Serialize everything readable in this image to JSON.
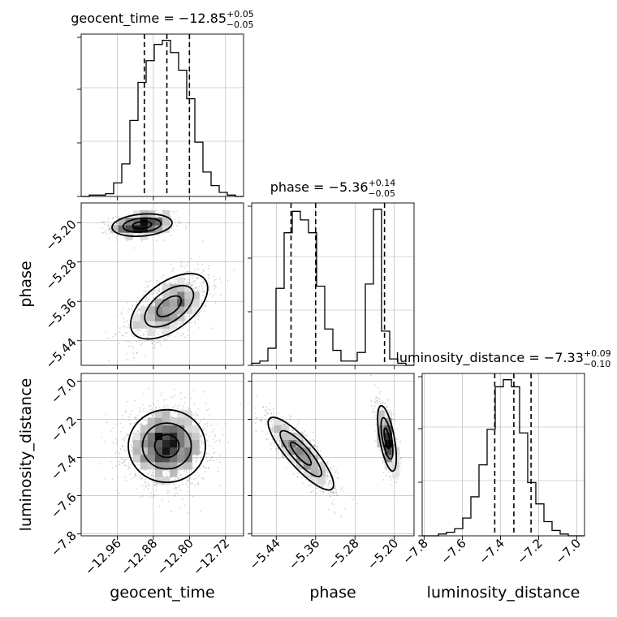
{
  "chart_data": {
    "type": "corner",
    "parameters": [
      {
        "name": "geocent_time",
        "label": "geocent_time",
        "range": [
          -13.04,
          -12.68
        ],
        "ticks": [
          -12.96,
          -12.88,
          -12.8,
          -12.72
        ],
        "tick_labels": [
          "−12.96",
          "−12.88",
          "−12.80",
          "−12.72"
        ],
        "title": {
          "main": "geocent_time = −12.85",
          "sup": "+0.05",
          "sub": "−0.05"
        },
        "quantiles": [
          -12.9,
          -12.85,
          -12.8
        ],
        "hist_bins": [
          -13.04,
          -12.68
        ],
        "hist_counts": [
          0,
          1,
          1,
          2,
          10,
          24,
          56,
          84,
          100,
          112,
          115,
          106,
          93,
          72,
          40,
          18,
          8,
          3,
          1,
          0
        ]
      },
      {
        "name": "phase",
        "label": "phase",
        "range": [
          -5.49,
          -5.16
        ],
        "ticks": [
          -5.44,
          -5.36,
          -5.28,
          -5.2
        ],
        "tick_labels": [
          "−5.44",
          "−5.36",
          "−5.28",
          "−5.20"
        ],
        "title": {
          "main": "phase = −5.36",
          "sup": "+0.14",
          "sub": "−0.05"
        },
        "quantiles": [
          -5.41,
          -5.36,
          -5.22
        ],
        "hist_bins": [
          -5.49,
          -5.16
        ],
        "hist_counts": [
          1,
          2,
          8,
          36,
          62,
          72,
          68,
          62,
          37,
          17,
          7,
          2,
          2,
          6,
          38,
          73,
          16,
          3,
          1,
          0
        ]
      },
      {
        "name": "luminosity_distance",
        "label": "luminosity_distance",
        "range": [
          -7.81,
          -6.96
        ],
        "ticks": [
          -7.8,
          -7.6,
          -7.4,
          -7.2,
          -7.0
        ],
        "tick_labels": [
          "−7.8",
          "−7.6",
          "−7.4",
          "−7.2",
          "−7.0"
        ],
        "title": {
          "main": "luminosity_distance = −7.33",
          "sup": "+0.09",
          "sub": "−0.10"
        },
        "quantiles": [
          -7.43,
          -7.33,
          -7.24
        ],
        "hist_bins": [
          -7.81,
          -6.96
        ],
        "hist_counts": [
          0,
          0,
          1,
          2,
          4,
          10,
          22,
          40,
          60,
          84,
          88,
          84,
          58,
          30,
          18,
          8,
          3,
          1,
          0,
          0
        ]
      }
    ],
    "scatter_2d": [
      {
        "x": "geocent_time",
        "y": "phase",
        "modes": [
          {
            "cx": -12.905,
            "cy": -5.205,
            "sx": 0.035,
            "sy": 0.012,
            "rho": 0.2,
            "weight": 0.4
          },
          {
            "cx": -12.845,
            "cy": -5.37,
            "sx": 0.045,
            "sy": 0.035,
            "rho": 0.55,
            "weight": 0.6
          }
        ]
      },
      {
        "x": "geocent_time",
        "y": "luminosity_distance",
        "modes": [
          {
            "cx": -12.85,
            "cy": -7.34,
            "sx": 0.045,
            "sy": 0.1,
            "rho": 0.0,
            "weight": 1.0
          }
        ]
      },
      {
        "x": "phase",
        "y": "luminosity_distance",
        "modes": [
          {
            "cx": -5.39,
            "cy": -7.38,
            "sx": 0.035,
            "sy": 0.1,
            "rho": -0.85,
            "weight": 0.6
          },
          {
            "cx": -5.215,
            "cy": -7.3,
            "sx": 0.01,
            "sy": 0.09,
            "rho": -0.6,
            "weight": 0.4
          }
        ]
      }
    ],
    "grid": true
  }
}
